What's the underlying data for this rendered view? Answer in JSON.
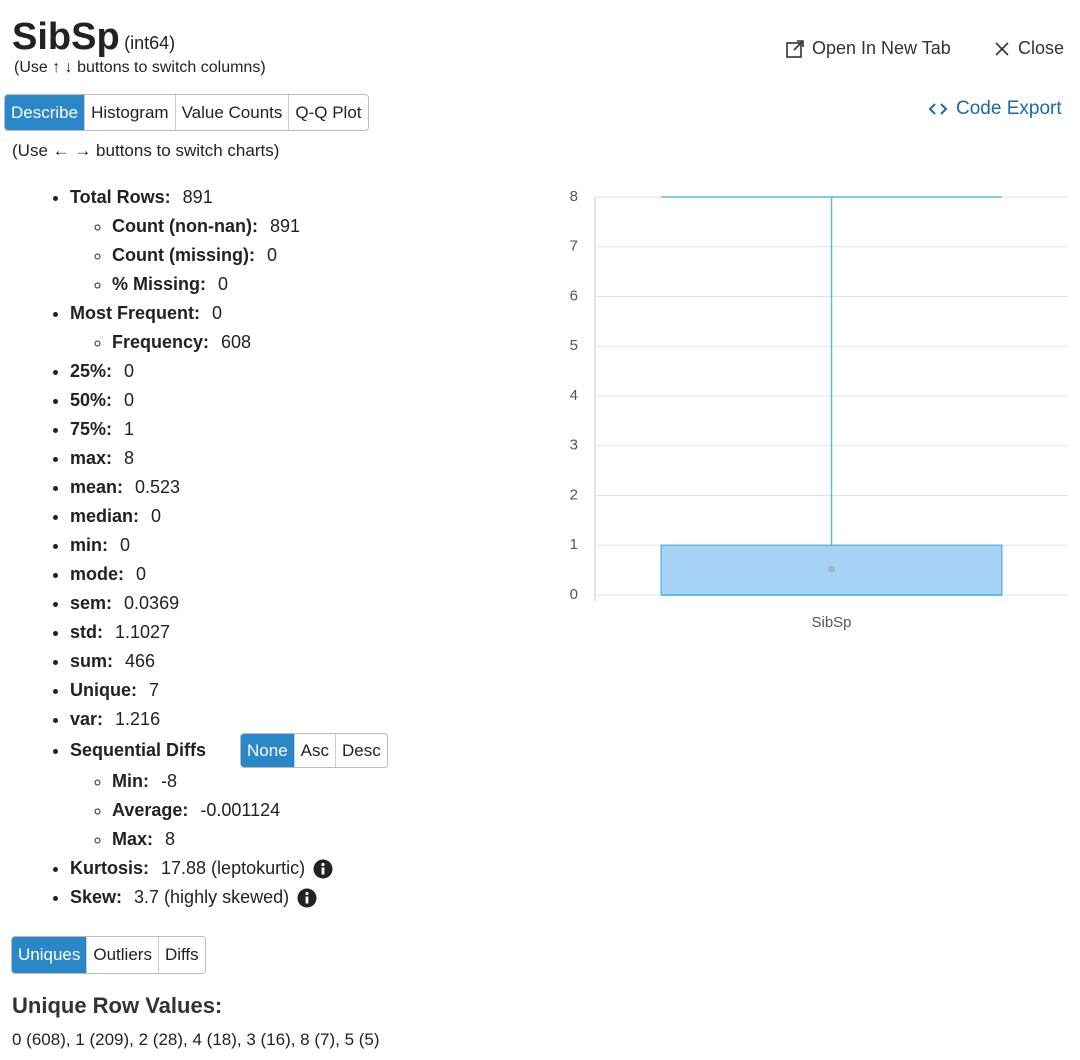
{
  "header": {
    "title": "SibSp",
    "dtype": "(int64)",
    "hint": "(Use ↑ ↓ buttons to switch columns)",
    "open_new_tab": "Open In New Tab",
    "close": "Close"
  },
  "tabs": [
    "Describe",
    "Histogram",
    "Value Counts",
    "Q-Q Plot"
  ],
  "code_export": "Code Export",
  "chart_hint": "(Use ← → buttons to switch charts)",
  "stats": [
    {
      "label": "Total Rows:",
      "value": "891",
      "children": [
        {
          "label": "Count (non-nan):",
          "value": "891"
        },
        {
          "label": "Count (missing):",
          "value": "0"
        },
        {
          "label": "% Missing:",
          "value": "0"
        }
      ]
    },
    {
      "label": "Most Frequent:",
      "value": "0",
      "children": [
        {
          "label": "Frequency:",
          "value": "608"
        }
      ]
    },
    {
      "label": "25%:",
      "value": "0"
    },
    {
      "label": "50%:",
      "value": "0"
    },
    {
      "label": "75%:",
      "value": "1"
    },
    {
      "label": "max:",
      "value": "8"
    },
    {
      "label": "mean:",
      "value": "0.523"
    },
    {
      "label": "median:",
      "value": "0"
    },
    {
      "label": "min:",
      "value": "0"
    },
    {
      "label": "mode:",
      "value": "0"
    },
    {
      "label": "sem:",
      "value": "0.0369"
    },
    {
      "label": "std:",
      "value": "1.1027"
    },
    {
      "label": "sum:",
      "value": "466"
    },
    {
      "label": "Unique:",
      "value": "7"
    },
    {
      "label": "var:",
      "value": "1.216"
    }
  ],
  "sequential_diffs": {
    "label": "Sequential Diffs",
    "buttons": [
      "None",
      "Asc",
      "Desc"
    ],
    "children": [
      {
        "label": "Min:",
        "value": "-8"
      },
      {
        "label": "Average:",
        "value": "-0.001124"
      },
      {
        "label": "Max:",
        "value": "8"
      }
    ]
  },
  "extra_stats": [
    {
      "label": "Kurtosis:",
      "value": "17.88 (leptokurtic)"
    },
    {
      "label": "Skew:",
      "value": "3.7 (highly skewed)"
    }
  ],
  "bottom_tabs": [
    "Uniques",
    "Outliers",
    "Diffs"
  ],
  "unique_title": "Unique Row Values:",
  "unique_values": "0 (608), 1 (209), 2 (28), 4 (18), 3 (16), 8 (7), 5 (5)",
  "chart_data": {
    "type": "box",
    "categories": [
      "SibSp"
    ],
    "boxes": [
      {
        "min": 0,
        "q1": 0,
        "median": 0,
        "q3": 1,
        "max": 8,
        "mean": 0.523
      }
    ],
    "color": "#a6d3f5",
    "edge_color": "#5bb8de",
    "mean_color": "#9cb7c9",
    "ylim": [
      0,
      8
    ],
    "yticks": [
      0,
      1,
      2,
      3,
      4,
      5,
      6,
      7,
      8
    ],
    "grid": true
  }
}
